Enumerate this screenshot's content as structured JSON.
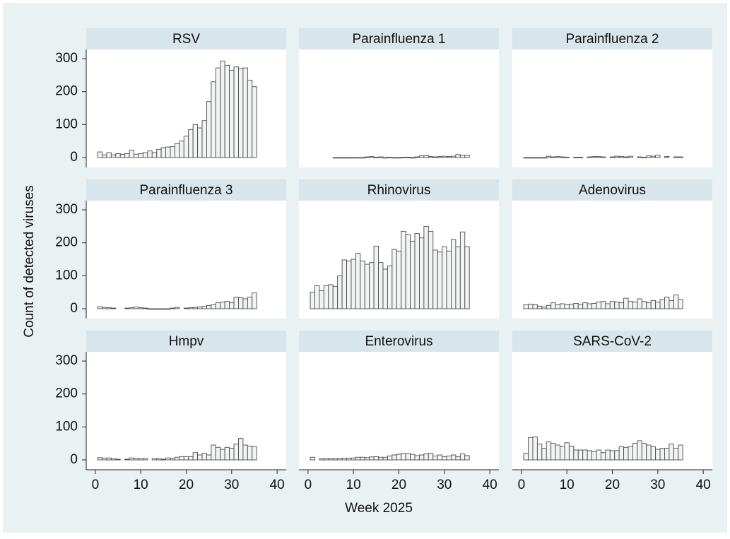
{
  "chart_data": {
    "type": "bar",
    "ylabel": "Count of detected viruses",
    "xlabel": "Week 2025",
    "xlim": [
      -2,
      42
    ],
    "xticks": [
      0,
      10,
      20,
      30,
      40
    ],
    "ylim": [
      -30,
      328
    ],
    "yticks": [
      0,
      100,
      200,
      300
    ],
    "x": [
      1,
      2,
      3,
      4,
      5,
      6,
      7,
      8,
      9,
      10,
      11,
      12,
      13,
      14,
      15,
      16,
      17,
      18,
      19,
      20,
      21,
      22,
      23,
      24,
      25,
      26,
      27,
      28,
      29,
      30,
      31,
      32,
      33,
      34,
      35
    ],
    "panels": [
      {
        "title": "RSV",
        "values": [
          17,
          8,
          15,
          8,
          12,
          10,
          12,
          22,
          10,
          12,
          15,
          20,
          15,
          25,
          30,
          32,
          33,
          42,
          50,
          65,
          85,
          100,
          90,
          112,
          170,
          230,
          272,
          293,
          280,
          265,
          275,
          270,
          272,
          235,
          215
        ]
      },
      {
        "title": "Parainfluenza 1",
        "values": [
          null,
          null,
          null,
          null,
          null,
          0,
          0,
          0,
          0,
          0,
          0,
          0,
          2,
          3,
          1,
          2,
          0,
          1,
          0,
          0,
          1,
          1,
          0,
          2,
          5,
          6,
          3,
          2,
          3,
          4,
          3,
          4,
          9,
          7,
          7
        ]
      },
      {
        "title": "Parainfluenza 2",
        "values": [
          0,
          0,
          0,
          0,
          0,
          4,
          2,
          3,
          2,
          1,
          null,
          1,
          1,
          null,
          2,
          3,
          3,
          2,
          null,
          2,
          4,
          3,
          2,
          4,
          null,
          2,
          1,
          5,
          4,
          7,
          null,
          3,
          null,
          2,
          2
        ]
      },
      {
        "title": "Parainfluenza 3",
        "values": [
          6,
          4,
          3,
          2,
          null,
          null,
          2,
          3,
          5,
          3,
          2,
          0,
          0,
          0,
          0,
          0,
          2,
          4,
          null,
          2,
          3,
          4,
          5,
          7,
          10,
          12,
          18,
          20,
          22,
          18,
          35,
          33,
          30,
          35,
          48
        ]
      },
      {
        "title": "Rhinovirus",
        "values": [
          50,
          70,
          55,
          70,
          73,
          68,
          100,
          148,
          145,
          150,
          168,
          145,
          135,
          140,
          190,
          140,
          120,
          130,
          180,
          175,
          235,
          225,
          205,
          228,
          215,
          250,
          235,
          178,
          172,
          188,
          175,
          210,
          188,
          233,
          188
        ]
      },
      {
        "title": "Adenovirus",
        "values": [
          12,
          14,
          12,
          8,
          5,
          10,
          18,
          12,
          15,
          12,
          14,
          16,
          14,
          18,
          15,
          16,
          20,
          22,
          15,
          22,
          20,
          18,
          32,
          22,
          20,
          30,
          22,
          18,
          25,
          20,
          28,
          35,
          25,
          42,
          28
        ]
      },
      {
        "title": "Hmpv",
        "values": [
          7,
          5,
          6,
          3,
          2,
          null,
          2,
          6,
          5,
          3,
          4,
          null,
          4,
          3,
          2,
          6,
          4,
          8,
          10,
          10,
          10,
          22,
          15,
          20,
          15,
          45,
          38,
          32,
          38,
          35,
          48,
          65,
          45,
          42,
          40
        ]
      },
      {
        "title": "Enterovirus",
        "values": [
          8,
          null,
          3,
          4,
          3,
          4,
          4,
          5,
          5,
          6,
          8,
          8,
          7,
          9,
          10,
          8,
          8,
          12,
          15,
          17,
          20,
          19,
          17,
          13,
          15,
          18,
          20,
          12,
          15,
          10,
          12,
          15,
          10,
          18,
          13
        ]
      },
      {
        "title": "SARS-CoV-2",
        "values": [
          20,
          68,
          70,
          48,
          35,
          55,
          50,
          45,
          40,
          52,
          42,
          30,
          30,
          30,
          28,
          25,
          30,
          22,
          30,
          28,
          28,
          40,
          38,
          40,
          50,
          58,
          50,
          45,
          40,
          32,
          35,
          35,
          48,
          35,
          45
        ]
      }
    ]
  }
}
